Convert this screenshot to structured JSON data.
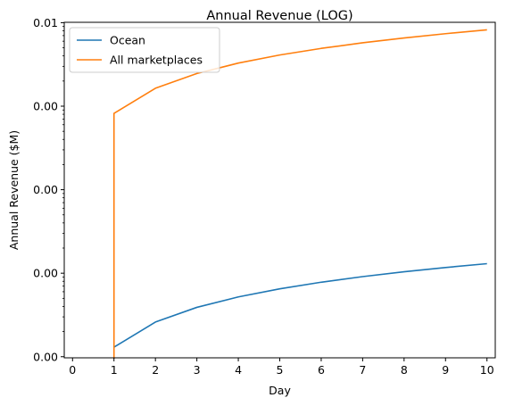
{
  "chart_data": {
    "type": "line",
    "title": "Annual Revenue (LOG)",
    "xlabel": "Day",
    "ylabel": "Annual Revenue ($M)",
    "y_scale": "log",
    "grid": false,
    "legend_placement": "top-left",
    "x_ticks": [
      0,
      1,
      2,
      3,
      4,
      5,
      6,
      7,
      8,
      9,
      10
    ],
    "xlim": [
      -0.2,
      10.2
    ],
    "y_tick_labels": [
      "0.01",
      "0.00",
      "0.00",
      "0.00",
      "0.00"
    ],
    "y_tick_values": [
      0.01,
      0.001,
      0.0001,
      1e-05,
      1e-06
    ],
    "ylim": [
      9.7e-07,
      0.0101
    ],
    "x": [
      1,
      2,
      3,
      4,
      5,
      6,
      7,
      8,
      9,
      10
    ],
    "series": [
      {
        "name": "Ocean",
        "color": "#1f77b4",
        "values": [
          1.3e-06,
          2.6e-06,
          3.9e-06,
          5.2e-06,
          6.5e-06,
          7.8e-06,
          9.1e-06,
          1.04e-05,
          1.17e-05,
          1.3e-05
        ]
      },
      {
        "name": "All marketplaces",
        "color": "#ff7f0e",
        "values": [
          0.00082,
          0.00164,
          0.00246,
          0.00328,
          0.0041,
          0.00492,
          0.00574,
          0.00656,
          0.00738,
          0.0082
        ],
        "drop_to_axis_at_first_point": true
      }
    ]
  }
}
